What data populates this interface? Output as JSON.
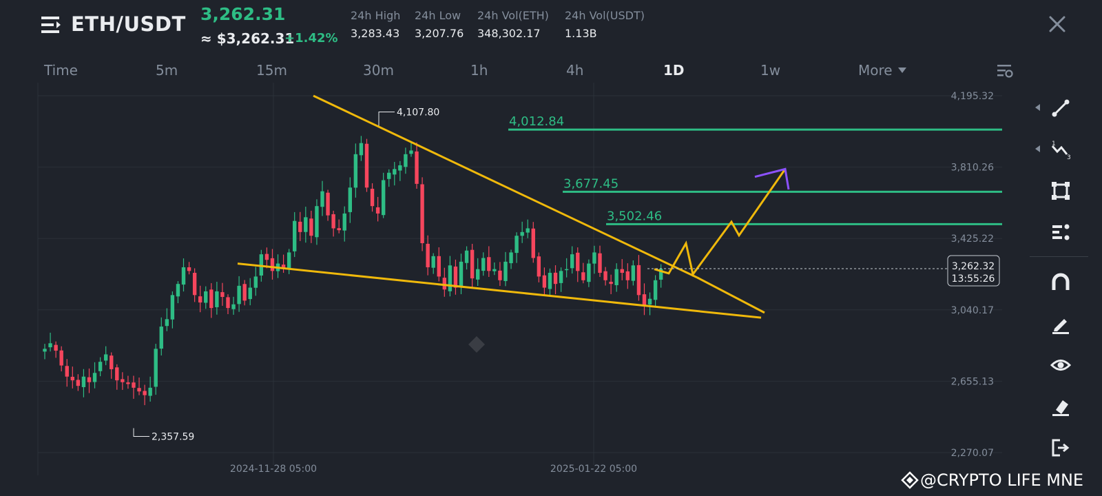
{
  "header": {
    "pair": "ETH/USDT",
    "last_price": "3,262.31",
    "last_price_usd": "≈ $3,262.31",
    "change_pct": "+1.42%",
    "stats": [
      {
        "label": "24h High",
        "value": "3,283.43"
      },
      {
        "label": "24h Low",
        "value": "3,207.76"
      },
      {
        "label": "24h Vol(ETH)",
        "value": "348,302.17"
      },
      {
        "label": "24h Vol(USDT)",
        "value": "1.13B"
      }
    ]
  },
  "timeframes": [
    "Time",
    "5m",
    "15m",
    "30m",
    "1h",
    "4h",
    "1D",
    "1w",
    "More"
  ],
  "active_timeframe": "1D",
  "colors": {
    "background": "#1f232b",
    "up": "#2ebd85",
    "down": "#f6465d",
    "trendline": "#f0b90b",
    "projection_tip": "#8c52ff",
    "level": "#2ebd85"
  },
  "toolbar_icons": [
    "trend-line-icon",
    "fibonacci-icon",
    "rectangle-icon",
    "indicator-icon",
    "magnet-icon",
    "pencil-icon",
    "eye-icon",
    "eraser-icon",
    "exit-icon"
  ],
  "watermark": "@CRYPTO LIFE MNE",
  "chart_data": {
    "type": "candlestick",
    "symbol": "ETH/USDT",
    "interval": "1D",
    "y_axis_ticks": [
      "4,195.32",
      "3,810.26",
      "3,425.22",
      "3,040.17",
      "2,655.13",
      "2,270.07"
    ],
    "ylim": [
      2270.07,
      4195.32
    ],
    "x_axis_labels": [
      "2024-11-28 05:00",
      "2025-01-22 05:00"
    ],
    "current_price": "3,262.32",
    "countdown": "13:55:26",
    "high_marker": "4,107.80",
    "low_marker": "2,357.59",
    "levels": [
      {
        "label": "4,012.84",
        "value": 4012.84
      },
      {
        "label": "3,677.45",
        "value": 3677.45
      },
      {
        "label": "3,502.46",
        "value": 3502.46
      }
    ],
    "pattern": "falling wedge",
    "candles_close": [
      2830,
      2860,
      2820,
      2740,
      2680,
      2660,
      2630,
      2680,
      2650,
      2700,
      2760,
      2800,
      2720,
      2660,
      2650,
      2640,
      2620,
      2600,
      2580,
      2620,
      2830,
      2950,
      2990,
      3120,
      3180,
      3270,
      3250,
      3120,
      3080,
      3140,
      3050,
      3140,
      3110,
      3050,
      3070,
      3170,
      3090,
      3160,
      3220,
      3340,
      3310,
      3250,
      3290,
      3260,
      3350,
      3520,
      3460,
      3540,
      3440,
      3600,
      3680,
      3550,
      3480,
      3470,
      3560,
      3700,
      3880,
      3940,
      3700,
      3600,
      3560,
      3740,
      3780,
      3800,
      3820,
      3880,
      3900,
      3720,
      3400,
      3270,
      3330,
      3220,
      3150,
      3280,
      3160,
      3300,
      3360,
      3210,
      3260,
      3320,
      3250,
      3260,
      3200,
      3300,
      3350,
      3440,
      3460,
      3480,
      3320,
      3220,
      3160,
      3240,
      3180,
      3250,
      3260,
      3340,
      3250,
      3200,
      3290,
      3350,
      3240,
      3200,
      3180,
      3260,
      3240,
      3200,
      3280,
      3120,
      3060,
      3100,
      3200,
      3262
    ]
  }
}
